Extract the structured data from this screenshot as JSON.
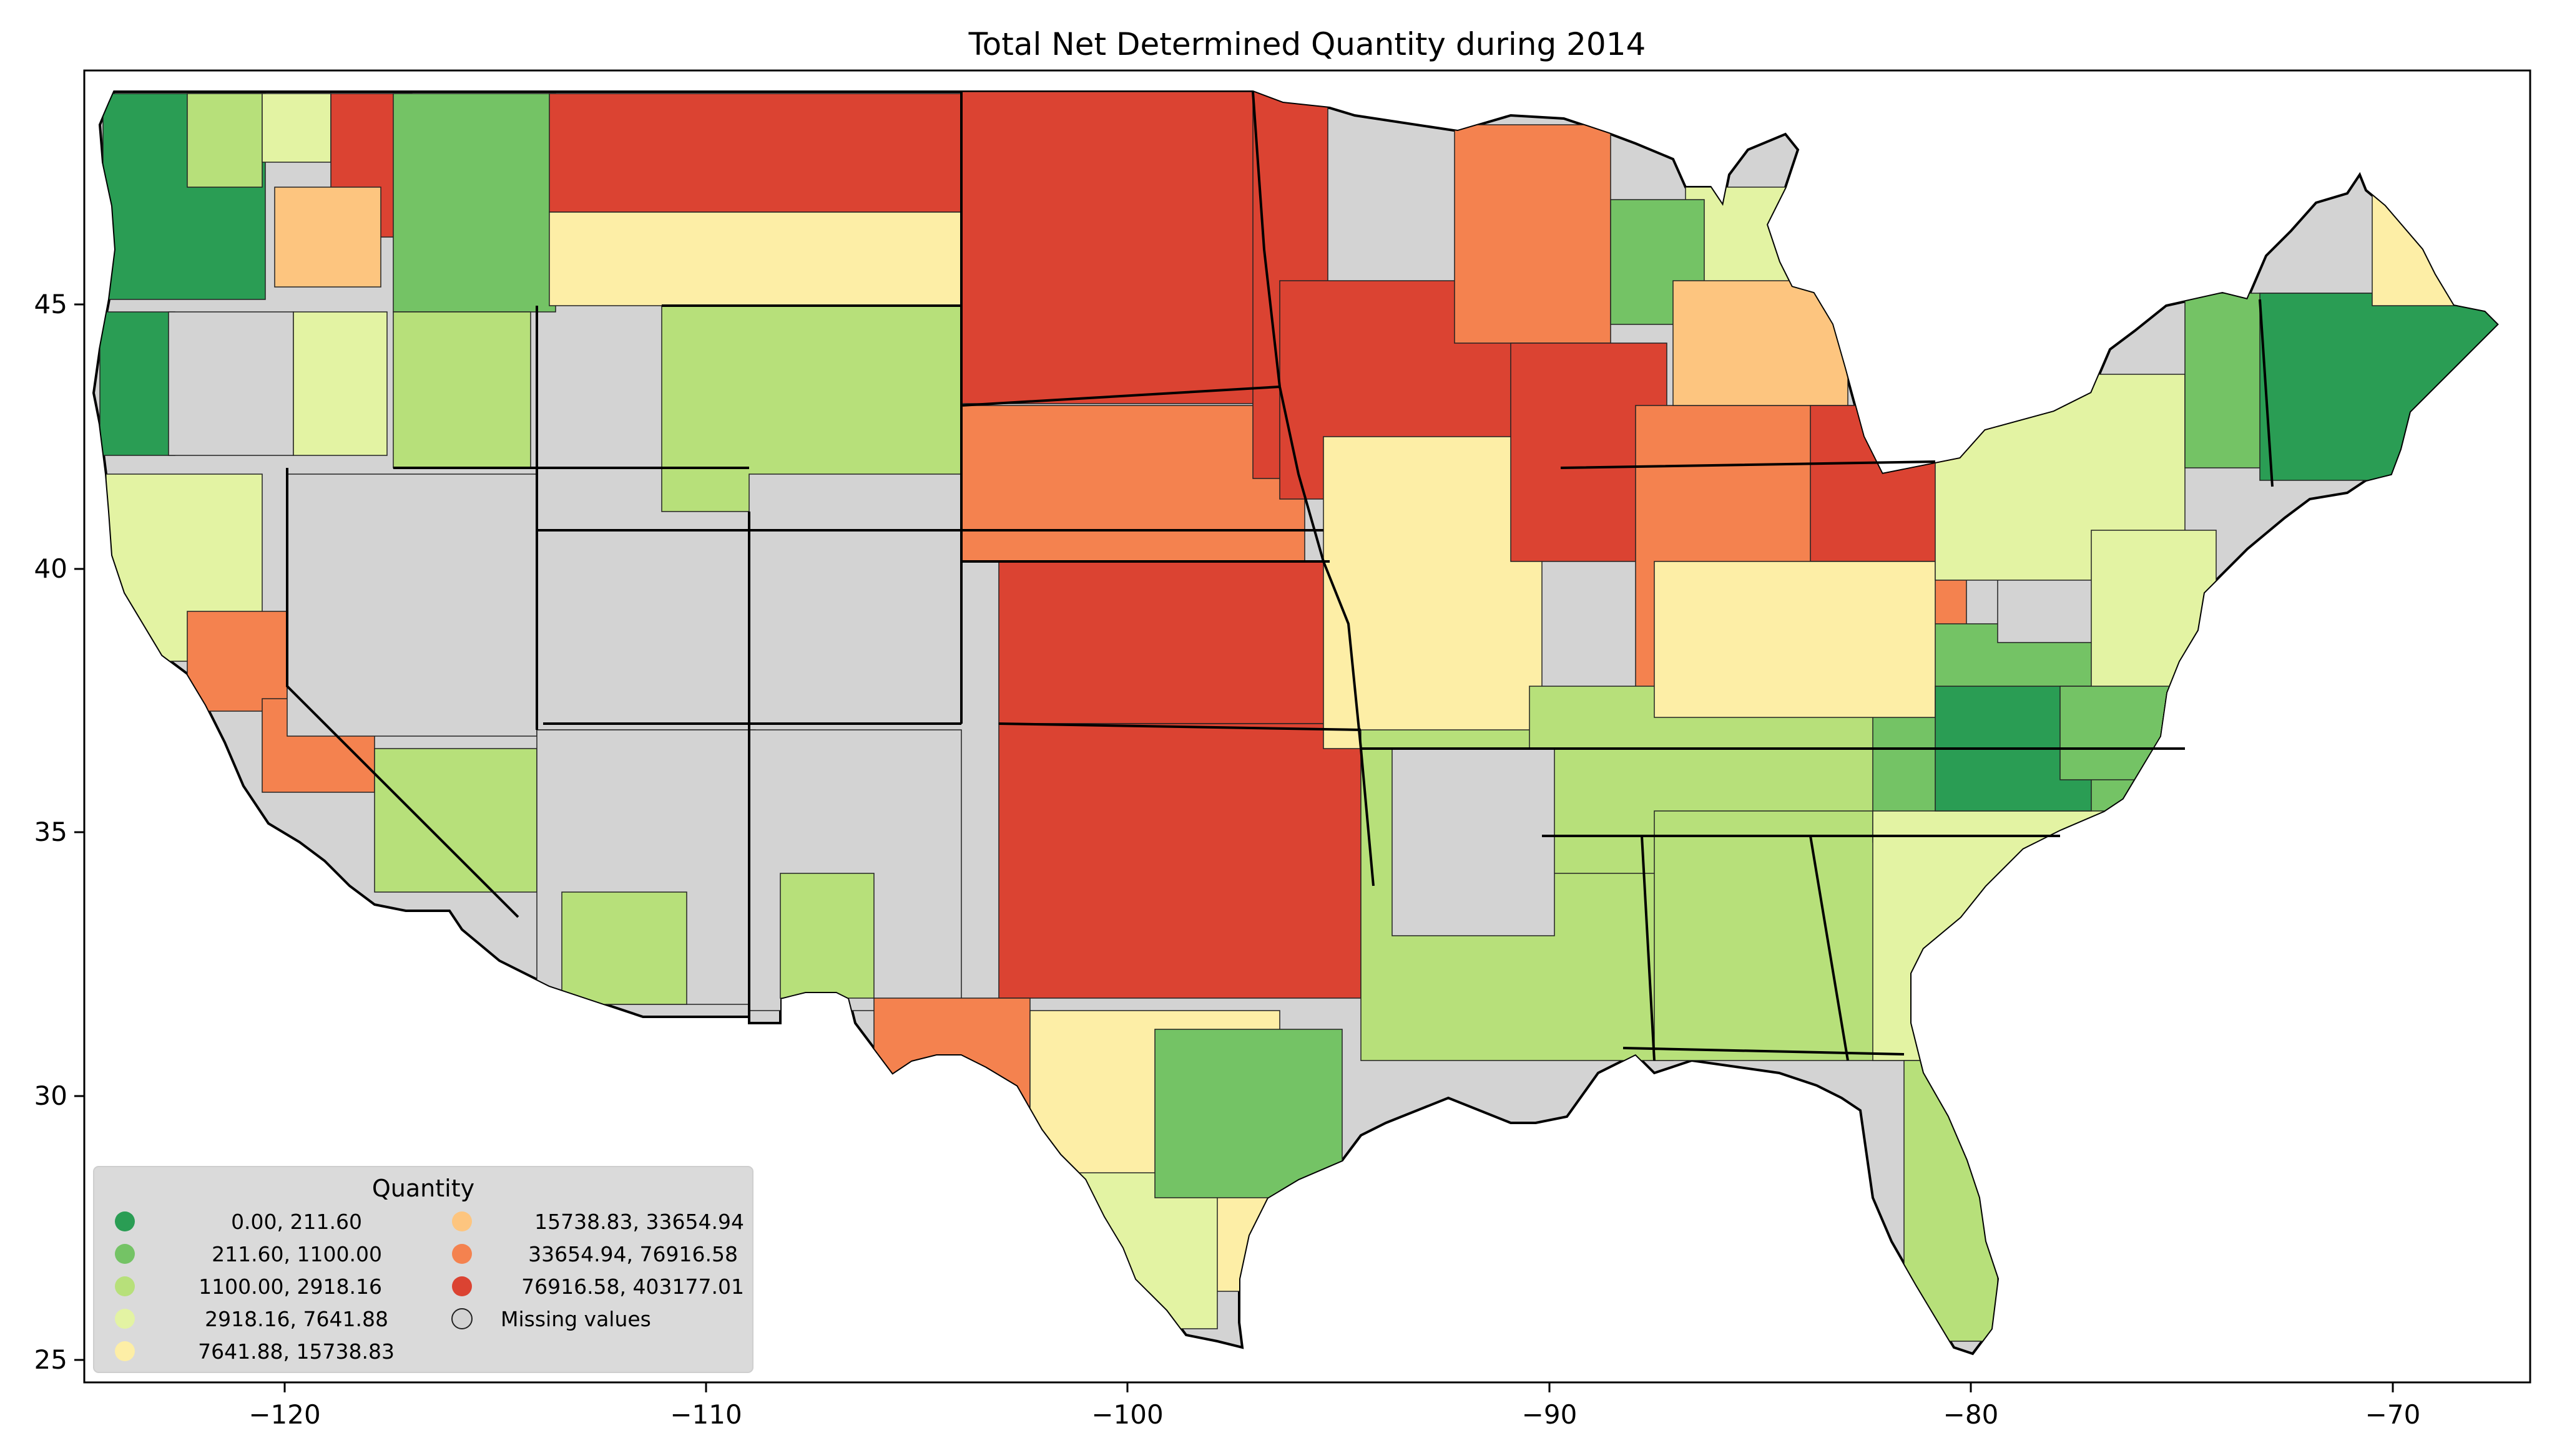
{
  "map": {
    "title": "Total Net Determined Quantity during 2014",
    "x_ticks": [
      "−120",
      "−110",
      "−100",
      "−90",
      "−80",
      "−70"
    ],
    "y_ticks": [
      "45",
      "40",
      "35",
      "30",
      "25"
    ],
    "lon_range": [
      -125.0,
      -66.5
    ],
    "lat_range": [
      24.5,
      49.5
    ]
  },
  "legend": {
    "title": "Quantity",
    "items": [
      {
        "label": "0.00,    211.60",
        "color": "#2a9d54"
      },
      {
        "label": "211.60,   1100.00",
        "color": "#74c365"
      },
      {
        "label": "1100.00,   2918.16",
        "color": "#b7e07a"
      },
      {
        "label": "2918.16,   7641.88",
        "color": "#e3f3a3"
      },
      {
        "label": "7641.88,  15738.83",
        "color": "#fdeea6"
      },
      {
        "label": "15738.83,  33654.94",
        "color": "#fdc57f"
      },
      {
        "label": "33654.94,  76916.58",
        "color": "#f4824f"
      },
      {
        "label": "76916.58, 403177.01",
        "color": "#db4332"
      },
      {
        "label": "Missing values",
        "color": "#d3d3d3"
      }
    ]
  },
  "colors": {
    "missing": "#d3d3d3",
    "frame": "#000000",
    "legend_bg": "#d9d9d9"
  }
}
